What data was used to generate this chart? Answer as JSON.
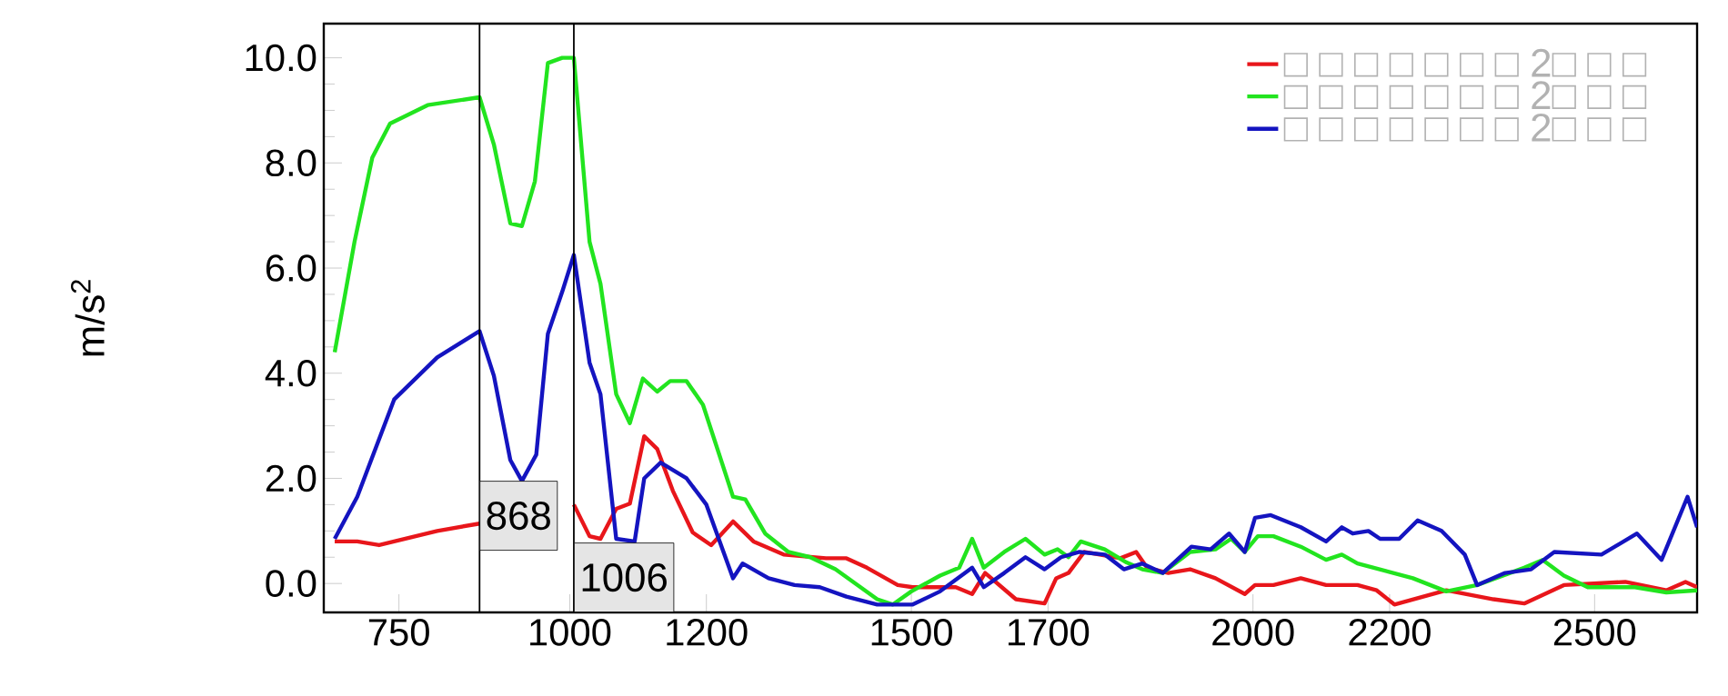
{
  "chart_data": {
    "type": "line",
    "ylabel": "m/s$^{2}$",
    "xlim": [
      640,
      2650
    ],
    "ylim": [
      -0.55,
      10.65
    ],
    "xticks": [
      750,
      1000,
      1200,
      1500,
      1700,
      2000,
      2200,
      2500
    ],
    "yticks": [
      {
        "value": 0,
        "label": "0.0"
      },
      {
        "value": 2,
        "label": "2.0"
      },
      {
        "value": 4,
        "label": "4.0"
      },
      {
        "value": 6,
        "label": "6.0"
      },
      {
        "value": 8,
        "label": "8.0"
      },
      {
        "value": 10,
        "label": "10.0"
      }
    ],
    "legend": "top right",
    "line_style": "solid",
    "marker": "none",
    "ref_lines": [
      {
        "axis": "x",
        "value": 868,
        "label": "868",
        "color": "#000000"
      },
      {
        "axis": "x",
        "value": 1006,
        "label": "1006",
        "color": "#000000"
      }
    ],
    "series": [
      {
        "name": "□ □ □ □ □ □ □ 2□ □ □",
        "color": "#e8161b",
        "x": [
          656,
          689,
          721,
          743,
          806,
          868,
          937,
          1006,
          1029,
          1045,
          1068,
          1088,
          1109,
          1128,
          1151,
          1180,
          1207,
          1239,
          1269,
          1313,
          1375,
          1405,
          1435,
          1480,
          1502,
          1565,
          1589,
          1608,
          1653,
          1695,
          1712,
          1730,
          1753,
          1806,
          1829,
          1845,
          1876,
          1908,
          1945,
          1988,
          2003,
          2030,
          2070,
          2107,
          2153,
          2181,
          2207,
          2283,
          2352,
          2397,
          2455,
          2545,
          2605,
          2633,
          2650
        ],
        "values": [
          0.8,
          0.8,
          0.73,
          0.8,
          1.0,
          1.14,
          null,
          1.5,
          0.9,
          0.85,
          1.42,
          1.52,
          2.8,
          2.56,
          1.76,
          0.97,
          0.73,
          1.18,
          0.8,
          0.55,
          0.48,
          0.48,
          0.3,
          -0.03,
          -0.07,
          -0.07,
          -0.2,
          0.2,
          -0.3,
          -0.38,
          0.1,
          0.2,
          0.6,
          0.48,
          0.6,
          0.3,
          0.2,
          0.27,
          0.1,
          -0.2,
          -0.03,
          -0.03,
          0.1,
          -0.03,
          -0.03,
          -0.13,
          -0.4,
          -0.13,
          -0.3,
          -0.38,
          -0.03,
          0.03,
          -0.13,
          0.03,
          -0.07
        ]
      },
      {
        "name": "□ □ □ □ □ □ □ 2□ □ □",
        "color": "#22e41f",
        "x": [
          656,
          685,
          711,
          737,
          792,
          868,
          889,
          913,
          930,
          949,
          968,
          989,
          1006,
          1029,
          1045,
          1068,
          1088,
          1107,
          1128,
          1147,
          1171,
          1195,
          1239,
          1257,
          1286,
          1320,
          1352,
          1389,
          1450,
          1473,
          1500,
          1542,
          1570,
          1589,
          1606,
          1636,
          1667,
          1695,
          1714,
          1730,
          1748,
          1783,
          1815,
          1838,
          1868,
          1908,
          1945,
          1968,
          1988,
          2007,
          2030,
          2070,
          2107,
          2130,
          2153,
          2234,
          2283,
          2328,
          2397,
          2424,
          2455,
          2490,
          2559,
          2605,
          2650
        ],
        "values": [
          4.4,
          6.5,
          8.1,
          8.75,
          9.1,
          9.25,
          8.35,
          6.85,
          6.8,
          7.65,
          9.9,
          10.0,
          10.0,
          6.5,
          5.7,
          3.6,
          3.05,
          3.9,
          3.65,
          3.85,
          3.85,
          3.4,
          1.65,
          1.6,
          0.95,
          0.6,
          0.5,
          0.27,
          -0.3,
          -0.4,
          -0.15,
          0.15,
          0.3,
          0.85,
          0.3,
          0.6,
          0.85,
          0.55,
          0.65,
          0.5,
          0.8,
          0.65,
          0.4,
          0.27,
          0.2,
          0.6,
          0.65,
          0.85,
          0.6,
          0.9,
          0.9,
          0.7,
          0.45,
          0.55,
          0.38,
          0.1,
          -0.15,
          -0.03,
          0.3,
          0.45,
          0.15,
          -0.07,
          -0.07,
          -0.17,
          -0.13
        ]
      },
      {
        "name": "□ □ □ □ □ □ □ 2□ □ □",
        "color": "#1414c0",
        "x": [
          656,
          689,
          743,
          806,
          868,
          889,
          913,
          930,
          951,
          968,
          989,
          1006,
          1029,
          1045,
          1068,
          1095,
          1109,
          1133,
          1171,
          1200,
          1239,
          1253,
          1291,
          1329,
          1366,
          1405,
          1450,
          1466,
          1502,
          1542,
          1589,
          1606,
          1636,
          1667,
          1695,
          1719,
          1746,
          1783,
          1811,
          1838,
          1868,
          1910,
          1938,
          1965,
          1988,
          2003,
          2026,
          2070,
          2107,
          2130,
          2146,
          2169,
          2186,
          2214,
          2241,
          2276,
          2310,
          2328,
          2369,
          2407,
          2441,
          2510,
          2562,
          2598,
          2636,
          2650
        ],
        "values": [
          0.85,
          1.65,
          3.5,
          4.3,
          4.8,
          3.95,
          2.35,
          1.95,
          2.45,
          4.75,
          5.55,
          6.25,
          4.2,
          3.6,
          0.85,
          0.8,
          2.0,
          2.3,
          2.0,
          1.5,
          0.1,
          0.38,
          0.1,
          -0.03,
          -0.07,
          -0.25,
          -0.4,
          -0.4,
          -0.4,
          -0.15,
          0.3,
          -0.07,
          0.2,
          0.5,
          0.27,
          0.5,
          0.6,
          0.55,
          0.27,
          0.38,
          0.2,
          0.7,
          0.65,
          0.95,
          0.6,
          1.25,
          1.3,
          1.07,
          0.8,
          1.07,
          0.95,
          1.0,
          0.85,
          0.85,
          1.2,
          1.0,
          0.55,
          -0.03,
          0.2,
          0.27,
          0.6,
          0.55,
          0.95,
          0.45,
          1.65,
          1.07
        ]
      }
    ]
  }
}
